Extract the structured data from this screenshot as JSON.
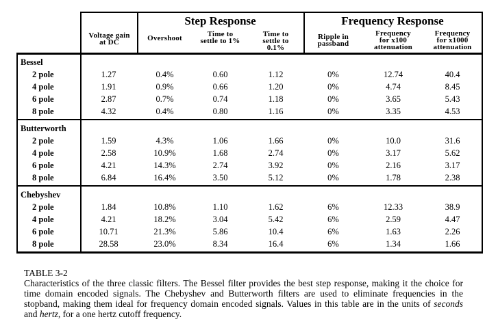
{
  "table": {
    "header": {
      "step_group_title": "Step Response",
      "frequency_group_title": "Frequency Response",
      "columns": {
        "voltage_gain": {
          "line1": "Voltage gain",
          "line2": "at DC"
        },
        "overshoot": {
          "line1": "Overshoot"
        },
        "settle_1pct": {
          "line1": "Time to",
          "line2": "settle to 1%"
        },
        "settle_01pct": {
          "line1": "Time to",
          "line2": "settle to",
          "line3": "0.1%"
        },
        "ripple": {
          "line1": "Ripple in",
          "line2": "passband"
        },
        "freq_x100": {
          "line1": "Frequency",
          "line2": "for x100",
          "line3": "attenuation"
        },
        "freq_x1000": {
          "line1": "Frequency",
          "line2": "for x1000",
          "line3": "attenuation"
        }
      }
    },
    "sections": [
      {
        "name": "Bessel",
        "rows": [
          {
            "label": "2 pole",
            "values": [
              "1.27",
              "0.4%",
              "0.60",
              "1.12",
              "0%",
              "12.74",
              "40.4"
            ]
          },
          {
            "label": "4 pole",
            "values": [
              "1.91",
              "0.9%",
              "0.66",
              "1.20",
              "0%",
              "4.74",
              "8.45"
            ]
          },
          {
            "label": "6 pole",
            "values": [
              "2.87",
              "0.7%",
              "0.74",
              "1.18",
              "0%",
              "3.65",
              "5.43"
            ]
          },
          {
            "label": "8 pole",
            "values": [
              "4.32",
              "0.4%",
              "0.80",
              "1.16",
              "0%",
              "3.35",
              "4.53"
            ]
          }
        ]
      },
      {
        "name": "Butterworth",
        "rows": [
          {
            "label": "2 pole",
            "values": [
              "1.59",
              "4.3%",
              "1.06",
              "1.66",
              "0%",
              "10.0",
              "31.6"
            ]
          },
          {
            "label": "4 pole",
            "values": [
              "2.58",
              "10.9%",
              "1.68",
              "2.74",
              "0%",
              "3.17",
              "5.62"
            ]
          },
          {
            "label": "6 pole",
            "values": [
              "4.21",
              "14.3%",
              "2.74",
              "3.92",
              "0%",
              "2.16",
              "3.17"
            ]
          },
          {
            "label": "8 pole",
            "values": [
              "6.84",
              "16.4%",
              "3.50",
              "5.12",
              "0%",
              "1.78",
              "2.38"
            ]
          }
        ]
      },
      {
        "name": "Chebyshev",
        "rows": [
          {
            "label": "2 pole",
            "values": [
              "1.84",
              "10.8%",
              "1.10",
              "1.62",
              "6%",
              "12.33",
              "38.9"
            ]
          },
          {
            "label": "4 pole",
            "values": [
              "4.21",
              "18.2%",
              "3.04",
              "5.42",
              "6%",
              "2.59",
              "4.47"
            ]
          },
          {
            "label": "6 pole",
            "values": [
              "10.71",
              "21.3%",
              "5.86",
              "10.4",
              "6%",
              "1.63",
              "2.26"
            ]
          },
          {
            "label": "8 pole",
            "values": [
              "28.58",
              "23.0%",
              "8.34",
              "16.4",
              "6%",
              "1.34",
              "1.66"
            ]
          }
        ]
      }
    ]
  },
  "caption": {
    "label": "TABLE 3-2",
    "part1": "Characteristics of the three classic filters.  The Bessel filter provides the best step response, making it the choice for time domain encoded signals.  The Chebyshev and Butterworth filters are used to eliminate frequencies in the stopband, making them ideal for frequency domain encoded signals.  Values in this table are in the units of ",
    "italic1": "seconds",
    "part2": " and ",
    "italic2": "hertz",
    "part3": ", for a one hertz cutoff frequency."
  }
}
